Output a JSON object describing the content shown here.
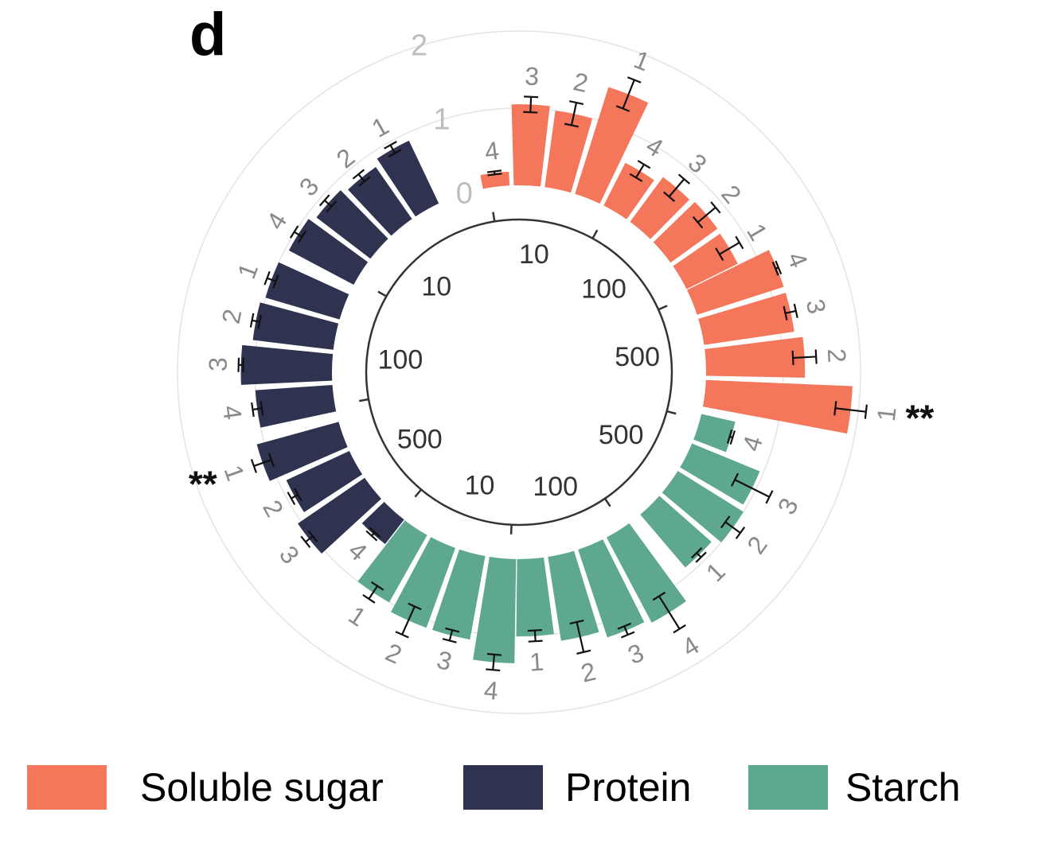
{
  "panel_label": "d",
  "colors": {
    "soluble_sugar": "#f4765b",
    "protein": "#2f3350",
    "starch": "#5ea88f"
  },
  "chart_data": {
    "type": "bar",
    "subtype": "circular-bar",
    "radial_axis": {
      "ticks": [
        "0",
        "1",
        "2"
      ],
      "range": [
        0,
        2
      ],
      "grid": true
    },
    "inner_labels": [
      "500",
      "100",
      "10",
      "10",
      "500",
      "100",
      "10",
      "100",
      "500",
      "100"
    ],
    "star_annotation": "**",
    "series": [
      {
        "name": "Soluble sugar",
        "color_key": "soluble_sugar",
        "groups": [
          {
            "level": "10",
            "labels": [
              "4",
              "3",
              "2",
              "1"
            ],
            "values": [
              0.18,
              1.05,
              1.0,
              1.45
            ],
            "errors": [
              0.02,
              0.1,
              0.15,
              0.2
            ]
          },
          {
            "level": "100",
            "labels": [
              "4",
              "3",
              "2",
              "1"
            ],
            "values": [
              0.62,
              0.72,
              0.75,
              0.74
            ],
            "errors": [
              0.1,
              0.15,
              0.15,
              0.15
            ]
          },
          {
            "level": "500",
            "labels": [
              "4",
              "3",
              "2",
              "1"
            ],
            "values": [
              1.18,
              1.18,
              1.28,
              1.9
            ],
            "errors": [
              0.02,
              0.07,
              0.15,
              0.2
            ],
            "significance": [
              null,
              null,
              null,
              "**"
            ]
          }
        ]
      },
      {
        "name": "Starch",
        "color_key": "starch",
        "groups": [
          {
            "level": "500",
            "labels": [
              "4",
              "3",
              "2",
              "1"
            ],
            "values": [
              0.45,
              0.95,
              1.0,
              0.9
            ],
            "errors": [
              0.02,
              0.25,
              0.12,
              0.04
            ]
          },
          {
            "level": "100",
            "labels": [
              "4",
              "3",
              "2",
              "1"
            ],
            "values": [
              1.25,
              1.2,
              1.1,
              1.0
            ],
            "errors": [
              0.25,
              0.06,
              0.2,
              0.07
            ]
          },
          {
            "level": "10",
            "labels": [
              "4",
              "3",
              "2",
              "1"
            ],
            "values": [
              1.35,
              1.1,
              1.1,
              1.0
            ],
            "errors": [
              0.1,
              0.07,
              0.2,
              0.1
            ]
          }
        ]
      },
      {
        "name": "Protein",
        "color_key": "protein",
        "groups": [
          {
            "level": "500",
            "labels": [
              "4",
              "3",
              "2",
              "1"
            ],
            "values": [
              0.4,
              1.05,
              0.9,
              1.1
            ],
            "errors": [
              0.03,
              0.06,
              0.05,
              0.12
            ],
            "significance": [
              null,
              null,
              null,
              "**"
            ]
          },
          {
            "level": "100",
            "labels": [
              "4",
              "3",
              "2",
              "1"
            ],
            "values": [
              1.0,
              1.18,
              1.05,
              1.0
            ],
            "errors": [
              0.06,
              0.03,
              0.05,
              0.06
            ]
          },
          {
            "level": "10",
            "labels": [
              "4",
              "3",
              "2",
              "1"
            ],
            "values": [
              0.95,
              0.88,
              0.82,
              0.9
            ],
            "errors": [
              0.06,
              0.06,
              0.06,
              0.06
            ]
          }
        ]
      }
    ]
  },
  "legend": [
    {
      "label": "Soluble sugar",
      "color_key": "soluble_sugar"
    },
    {
      "label": "Protein",
      "color_key": "protein"
    },
    {
      "label": "Starch",
      "color_key": "starch"
    }
  ]
}
